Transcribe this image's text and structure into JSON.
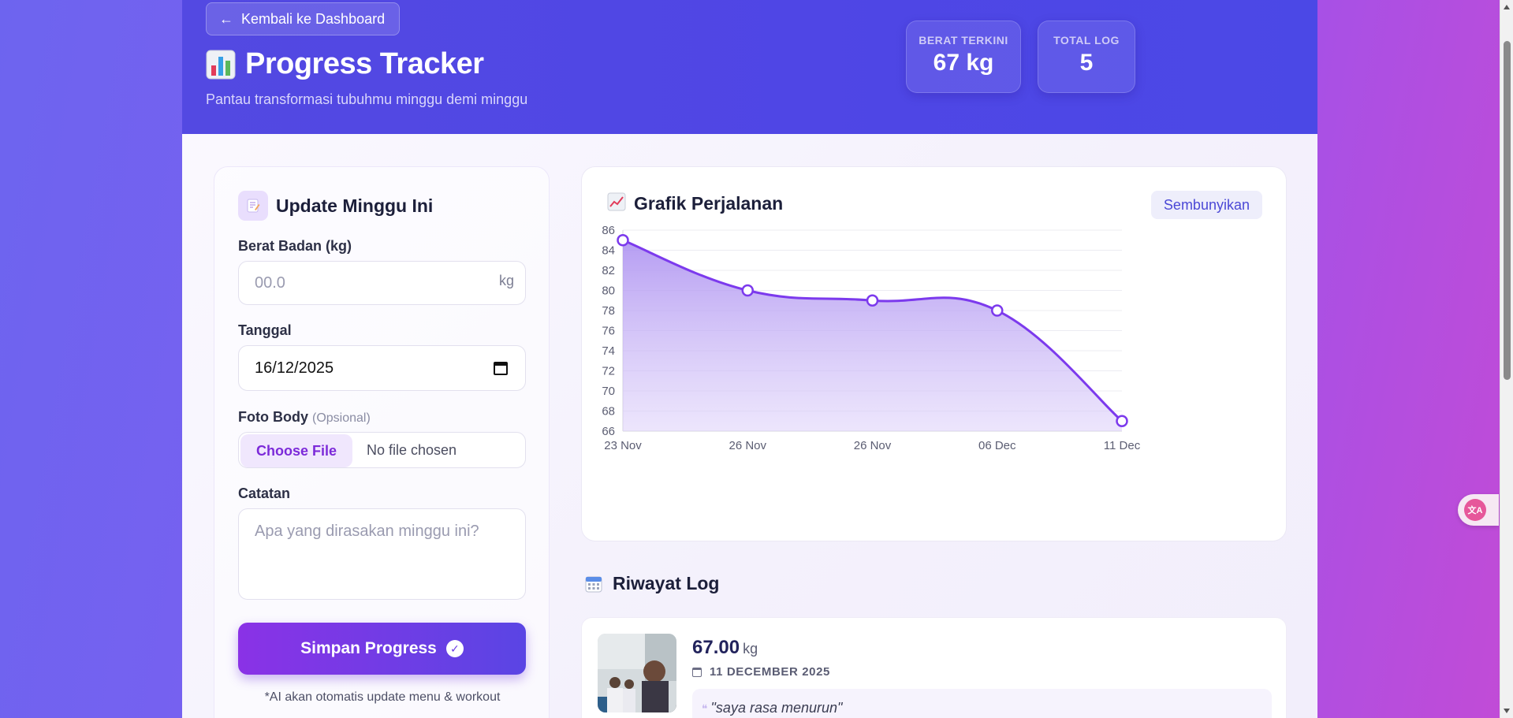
{
  "header": {
    "back_label": "Kembali ke Dashboard",
    "title": "Progress Tracker",
    "subtitle": "Pantau transformasi tubuhmu minggu demi minggu",
    "stats": [
      {
        "label": "BERAT TERKINI",
        "value": "67 kg"
      },
      {
        "label": "TOTAL LOG",
        "value": "5"
      }
    ]
  },
  "form": {
    "title": "Update Minggu Ini",
    "weight_label": "Berat Badan (kg)",
    "weight_placeholder": "00.0",
    "weight_unit": "kg",
    "date_label": "Tanggal",
    "date_value": "16/12/2025",
    "photo_label": "Foto Body",
    "photo_optional": "(Opsional)",
    "file_button": "Choose File",
    "file_status": "No file chosen",
    "notes_label": "Catatan",
    "notes_placeholder": "Apa yang dirasakan minggu ini?",
    "submit_label": "Simpan Progress",
    "note": "*AI akan otomatis update menu & workout"
  },
  "chart": {
    "title": "Grafik Perjalanan",
    "hide_label": "Sembunyikan"
  },
  "chart_data": {
    "type": "area",
    "title": "Grafik Perjalanan",
    "categories": [
      "23 Nov",
      "26 Nov",
      "26 Nov",
      "06 Dec",
      "11 Dec"
    ],
    "values": [
      85,
      80,
      79,
      78,
      67
    ],
    "ylim": [
      66,
      86
    ],
    "yticks": [
      66,
      68,
      70,
      72,
      74,
      76,
      78,
      80,
      82,
      84,
      86
    ],
    "grid": true,
    "color": "#7c3aed"
  },
  "log": {
    "title": "Riwayat Log",
    "entries": [
      {
        "weight": "67.00",
        "unit": "kg",
        "date": "11 DECEMBER 2025",
        "note": "\"saya rasa menurun\""
      }
    ]
  },
  "colors": {
    "hero": "#4f46e5",
    "accent": "#7c3aed",
    "submit_gradient_start": "#8a32e6",
    "submit_gradient_end": "#5a45e4"
  }
}
